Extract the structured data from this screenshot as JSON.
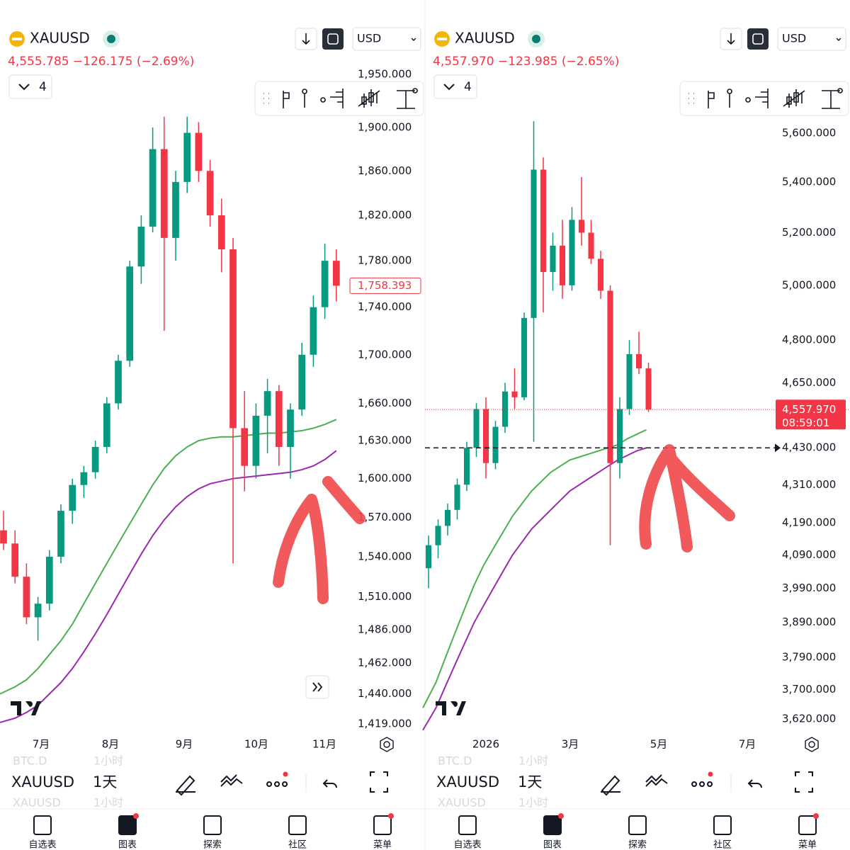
{
  "panels": [
    {
      "symbol": "XAUUSD",
      "price_line": "4,555.785  −126.175 (−2.69%)",
      "interval": "4",
      "currency": "USD",
      "log": true,
      "up_color": "#089981",
      "down_color": "#f23645",
      "ma_colors": [
        "#4caf50",
        "#9c27b0"
      ],
      "ylim": [
        1419,
        1950
      ],
      "yticks": [
        {
          "value": 1950,
          "label": "1,950.000"
        },
        {
          "value": 1900,
          "label": "1,900.000"
        },
        {
          "value": 1860,
          "label": "1,860.000"
        },
        {
          "value": 1820,
          "label": "1,820.000"
        },
        {
          "value": 1780,
          "label": "1,780.000"
        },
        {
          "value": 1740,
          "label": "1,740.000"
        },
        {
          "value": 1700,
          "label": "1,700.000"
        },
        {
          "value": 1660,
          "label": "1,660.000"
        },
        {
          "value": 1630,
          "label": "1,630.000"
        },
        {
          "value": 1600,
          "label": "1,600.000"
        },
        {
          "value": 1570,
          "label": "1,570.000"
        },
        {
          "value": 1540,
          "label": "1,540.000"
        },
        {
          "value": 1510,
          "label": "1,510.000"
        },
        {
          "value": 1486,
          "label": "1,486.000"
        },
        {
          "value": 1462,
          "label": "1,462.000"
        },
        {
          "value": 1440,
          "label": "1,440.000"
        },
        {
          "value": 1419,
          "label": "1,419.000"
        }
      ],
      "last_price": {
        "value": 1758.393,
        "label": "1,758.393"
      },
      "xlabels": [
        "7月",
        "8月",
        "9月",
        "10月",
        "11月"
      ],
      "candles": [
        [
          1560,
          1575,
          1545,
          1550
        ],
        [
          1550,
          1560,
          1520,
          1525
        ],
        [
          1525,
          1535,
          1490,
          1495
        ],
        [
          1495,
          1510,
          1478,
          1505
        ],
        [
          1505,
          1545,
          1500,
          1540
        ],
        [
          1540,
          1580,
          1535,
          1575
        ],
        [
          1575,
          1600,
          1565,
          1595
        ],
        [
          1595,
          1610,
          1585,
          1605
        ],
        [
          1605,
          1630,
          1600,
          1625
        ],
        [
          1625,
          1665,
          1620,
          1660
        ],
        [
          1660,
          1700,
          1655,
          1695
        ],
        [
          1695,
          1780,
          1690,
          1775
        ],
        [
          1775,
          1820,
          1760,
          1810
        ],
        [
          1810,
          1900,
          1805,
          1880
        ],
        [
          1880,
          1910,
          1720,
          1800
        ],
        [
          1800,
          1860,
          1780,
          1850
        ],
        [
          1850,
          1910,
          1840,
          1895
        ],
        [
          1895,
          1905,
          1850,
          1860
        ],
        [
          1860,
          1870,
          1810,
          1820
        ],
        [
          1820,
          1835,
          1770,
          1790
        ],
        [
          1790,
          1800,
          1535,
          1640
        ],
        [
          1640,
          1670,
          1590,
          1610
        ],
        [
          1610,
          1660,
          1600,
          1650
        ],
        [
          1650,
          1680,
          1620,
          1670
        ],
        [
          1670,
          1675,
          1610,
          1625
        ],
        [
          1625,
          1660,
          1600,
          1655
        ],
        [
          1655,
          1710,
          1650,
          1700
        ],
        [
          1700,
          1750,
          1690,
          1740
        ],
        [
          1740,
          1795,
          1730,
          1780
        ],
        [
          1780,
          1790,
          1745,
          1758.393
        ]
      ],
      "ma": [
        [
          1440,
          1445,
          1450,
          1458,
          1468,
          1478,
          1490,
          1505,
          1520,
          1535,
          1550,
          1565,
          1580,
          1595,
          1608,
          1618,
          1625,
          1630,
          1632,
          1633,
          1633,
          1634,
          1635,
          1636,
          1636,
          1637,
          1638,
          1640,
          1643,
          1647
        ],
        [
          1420,
          1423,
          1427,
          1432,
          1440,
          1448,
          1458,
          1470,
          1483,
          1497,
          1512,
          1527,
          1542,
          1556,
          1568,
          1578,
          1586,
          1592,
          1596,
          1598,
          1600,
          1601,
          1602,
          1603,
          1604,
          1605,
          1607,
          1610,
          1615,
          1622
        ]
      ],
      "toolbar": {
        "symbol": "XAUUSD",
        "interval": "1天",
        "ghost": [
          "BTC.D",
          "1小时",
          "XAUUSD",
          "1小时"
        ]
      },
      "nav": [
        "自选表",
        "图表",
        "探索",
        "社区",
        "菜单"
      ]
    },
    {
      "symbol": "XAUUSD",
      "price_line": "4,557.970  −123.985 (−2.65%)",
      "interval": "4",
      "currency": "USD",
      "log": true,
      "up_color": "#089981",
      "down_color": "#f23645",
      "ma_colors": [
        "#4caf50",
        "#9c27b0"
      ],
      "ylim": [
        3620,
        5600
      ],
      "yticks": [
        {
          "value": 5600,
          "label": "5,600.000"
        },
        {
          "value": 5400,
          "label": "5,400.000"
        },
        {
          "value": 5200,
          "label": "5,200.000"
        },
        {
          "value": 5000,
          "label": "5,000.000"
        },
        {
          "value": 4800,
          "label": "4,800.000"
        },
        {
          "value": 4650,
          "label": "4,650.000"
        },
        {
          "value": 4430,
          "label": "4,430.000"
        },
        {
          "value": 4310,
          "label": "4,310.000"
        },
        {
          "value": 4190,
          "label": "4,190.000"
        },
        {
          "value": 4090,
          "label": "4,090.000"
        },
        {
          "value": 3990,
          "label": "3,990.000"
        },
        {
          "value": 3890,
          "label": "3,890.000"
        },
        {
          "value": 3790,
          "label": "3,790.000"
        },
        {
          "value": 3700,
          "label": "3,700.000"
        },
        {
          "value": 3620,
          "label": "3,620.000"
        }
      ],
      "last_price": {
        "value": 4557.97,
        "label": "4,557.970"
      },
      "countdown": "08:59:01",
      "hline": 4430,
      "xlabels": [
        "2026",
        "3月",
        "5月",
        "7月"
      ],
      "candles": [
        [
          4050,
          4150,
          3990,
          4120
        ],
        [
          4120,
          4200,
          4080,
          4180
        ],
        [
          4180,
          4250,
          4150,
          4230
        ],
        [
          4230,
          4330,
          4200,
          4310
        ],
        [
          4310,
          4450,
          4290,
          4430
        ],
        [
          4430,
          4580,
          4400,
          4560
        ],
        [
          4560,
          4600,
          4330,
          4380
        ],
        [
          4380,
          4520,
          4360,
          4500
        ],
        [
          4500,
          4650,
          4480,
          4620
        ],
        [
          4620,
          4700,
          4560,
          4600
        ],
        [
          4600,
          4900,
          4590,
          4880
        ],
        [
          4880,
          5650,
          4450,
          5450
        ],
        [
          5450,
          5500,
          4900,
          5050
        ],
        [
          5050,
          5200,
          4980,
          5150
        ],
        [
          5150,
          5250,
          4950,
          5000
        ],
        [
          5000,
          5300,
          4980,
          5250
        ],
        [
          5250,
          5420,
          5150,
          5200
        ],
        [
          5200,
          5250,
          5080,
          5100
        ],
        [
          5100,
          5130,
          4950,
          4980
        ],
        [
          4980,
          5000,
          4120,
          4380
        ],
        [
          4380,
          4600,
          4330,
          4560
        ],
        [
          4560,
          4800,
          4540,
          4750
        ],
        [
          4750,
          4830,
          4680,
          4700
        ],
        [
          4700,
          4720,
          4550,
          4557.97
        ]
      ],
      "ma": [
        [
          3650,
          3720,
          3790,
          3860,
          3930,
          4000,
          4060,
          4110,
          4160,
          4210,
          4250,
          4290,
          4320,
          4350,
          4370,
          4390,
          4400,
          4410,
          4420,
          4430,
          4440,
          4460,
          4475,
          4490
        ],
        [
          3590,
          3650,
          3710,
          3770,
          3830,
          3890,
          3940,
          3990,
          4040,
          4090,
          4130,
          4170,
          4200,
          4230,
          4260,
          4290,
          4310,
          4330,
          4350,
          4370,
          4390,
          4405,
          4420,
          4430
        ]
      ],
      "toolbar": {
        "symbol": "XAUUSD",
        "interval": "1天",
        "ghost": [
          "BTC.D",
          "1小时",
          "XAUUSD",
          "1小时"
        ]
      },
      "nav": [
        "自选表",
        "图表",
        "探索",
        "社区",
        "菜单"
      ]
    }
  ]
}
